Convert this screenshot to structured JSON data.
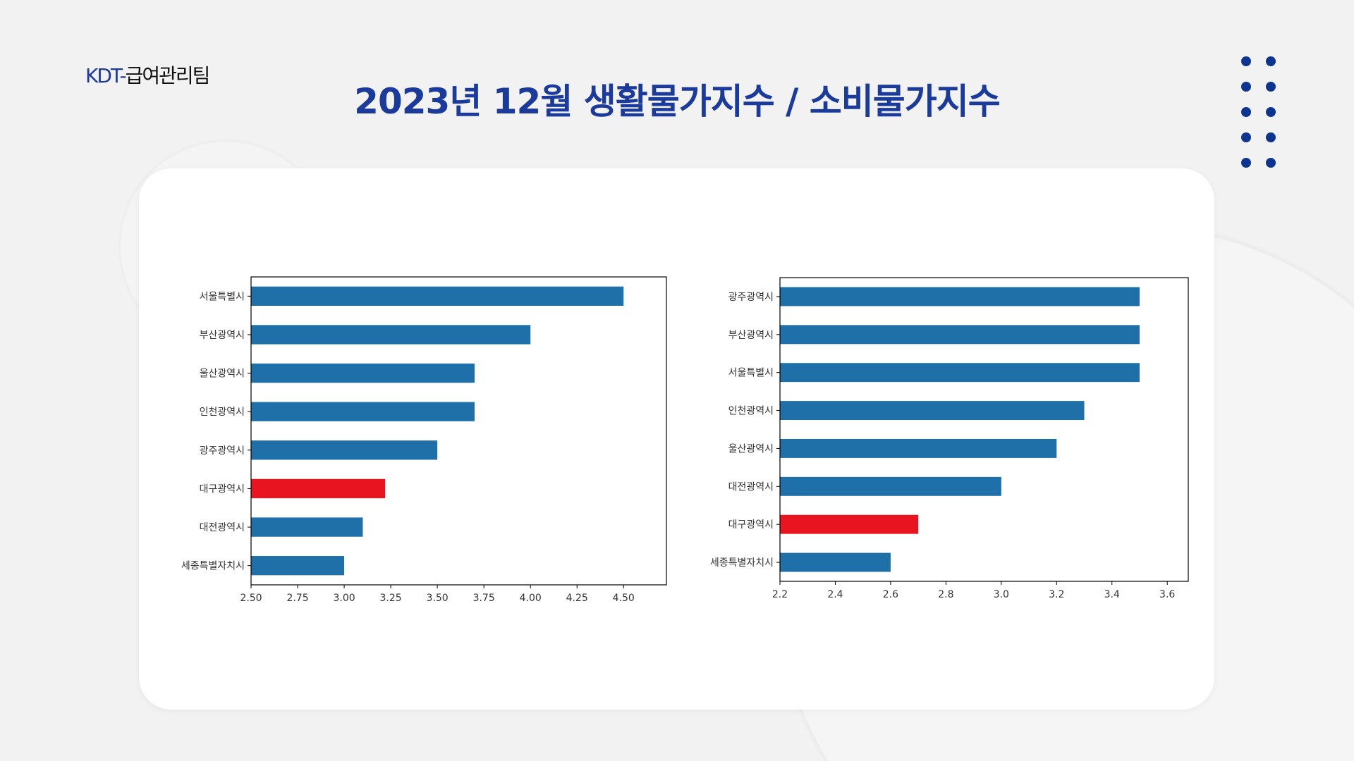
{
  "header": {
    "logo_prefix": "KDT-",
    "logo_text": "급여관리팀",
    "title": "2023년 12월 생활물가지수 / 소비물가지수"
  },
  "colors": {
    "bar": "#1f6fa8",
    "highlight": "#e8141f",
    "title": "#1a3a9c"
  },
  "chart_data": [
    {
      "type": "bar",
      "orientation": "horizontal",
      "title": "생활물가지수",
      "categories": [
        "서울특별시",
        "부산광역시",
        "울산광역시",
        "인천광역시",
        "광주광역시",
        "대구광역시",
        "대전광역시",
        "세종특별자치시"
      ],
      "values": [
        4.5,
        4.0,
        3.7,
        3.7,
        3.5,
        3.22,
        3.1,
        3.0
      ],
      "highlight": "대구광역시",
      "xlim": [
        2.5,
        4.73
      ],
      "xticks": [
        "2.50",
        "2.75",
        "3.00",
        "3.25",
        "3.50",
        "3.75",
        "4.00",
        "4.25",
        "4.50"
      ],
      "xlabel": "",
      "ylabel": "",
      "grid": false
    },
    {
      "type": "bar",
      "orientation": "horizontal",
      "title": "소비물가지수",
      "categories": [
        "광주광역시",
        "부산광역시",
        "서울특별시",
        "인천광역시",
        "울산광역시",
        "대전광역시",
        "대구광역시",
        "세종특별자치시"
      ],
      "values": [
        3.5,
        3.5,
        3.5,
        3.3,
        3.2,
        3.0,
        2.7,
        2.6
      ],
      "highlight": "대구광역시",
      "xlim": [
        2.2,
        3.676
      ],
      "xticks": [
        "2.2",
        "2.4",
        "2.6",
        "2.8",
        "3.0",
        "3.2",
        "3.4",
        "3.6"
      ],
      "xlabel": "",
      "ylabel": "",
      "grid": false
    }
  ]
}
